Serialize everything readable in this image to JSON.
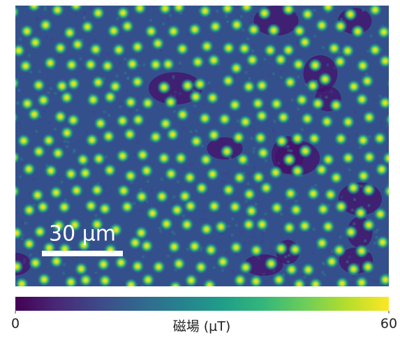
{
  "image": {
    "scale_bar": {
      "label": "30 μm"
    }
  },
  "colorbar": {
    "label": "磁場 (μT)",
    "lim": [
      0,
      60
    ],
    "ticks": [
      0,
      60
    ],
    "colors": [
      "#440154",
      "#482878",
      "#3e4989",
      "#31688e",
      "#26828e",
      "#1f9e89",
      "#35b779",
      "#6ece58",
      "#b5de2b",
      "#fde725"
    ]
  }
}
